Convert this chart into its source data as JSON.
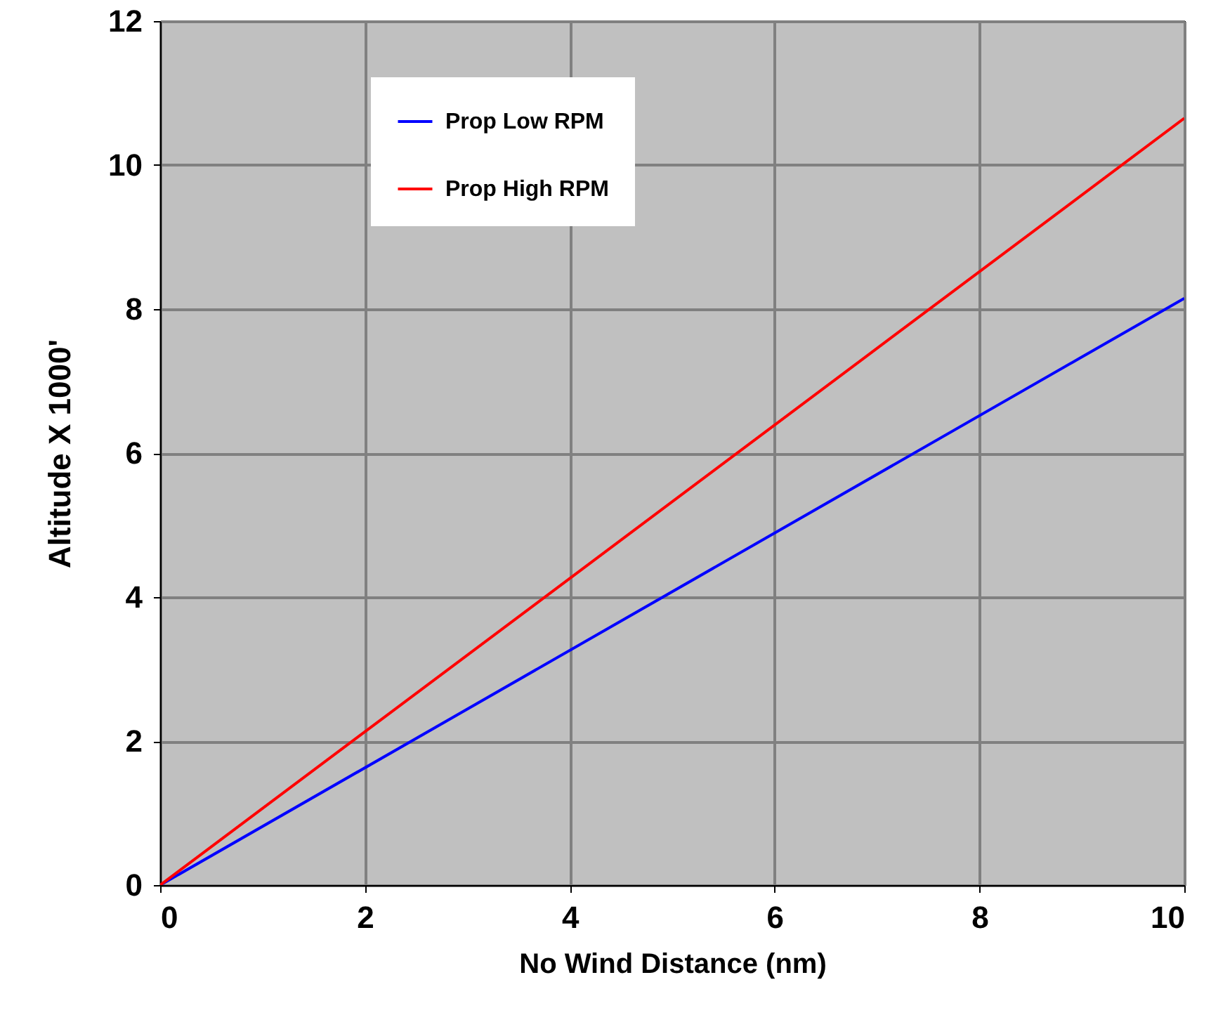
{
  "chart_data": {
    "type": "line",
    "xlabel": "No Wind Distance (nm)",
    "ylabel": "Altitude X 1000'",
    "x": [
      0,
      10
    ],
    "series": [
      {
        "name": "Prop Low RPM",
        "color": "#0000ff",
        "values": [
          0,
          8.15
        ]
      },
      {
        "name": "Prop High RPM",
        "color": "#ff0000",
        "values": [
          0,
          10.65
        ]
      }
    ],
    "xlim": [
      0,
      10
    ],
    "xticks": [
      0,
      2,
      4,
      6,
      8,
      10
    ],
    "ylim": [
      0,
      12
    ],
    "yticks": [
      0,
      2,
      4,
      6,
      8,
      10,
      12
    ],
    "grid": true,
    "legend": "top left",
    "marker": "none",
    "line_style": "solid"
  }
}
